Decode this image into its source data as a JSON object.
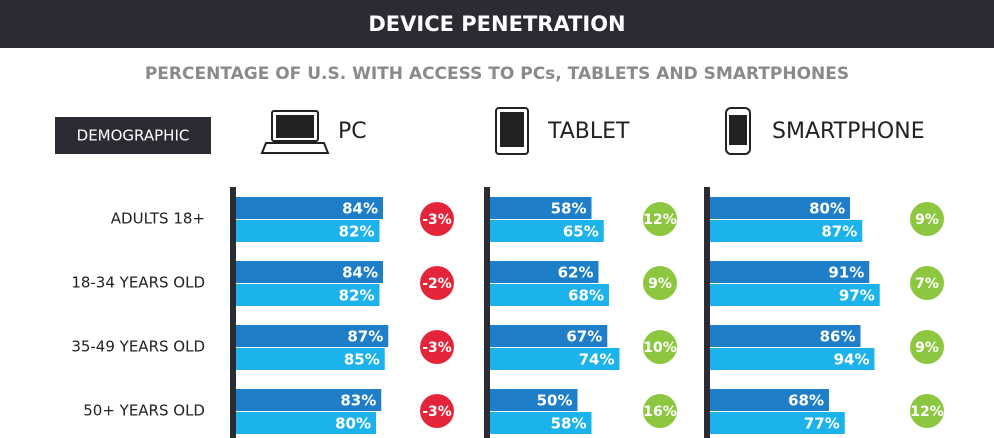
{
  "header": {
    "title": "DEVICE PENETRATION",
    "subtitle": "PERCENTAGE OF U.S. WITH ACCESS TO PCs, TABLETS AND SMARTPHONES"
  },
  "chart_data": {
    "type": "bar",
    "orientation": "horizontal",
    "row_label_header": "DEMOGRAPHIC",
    "categories": [
      "ADULTS 18+",
      "18-34 YEARS OLD",
      "35-49 YEARS OLD",
      "50+ YEARS OLD"
    ],
    "change_colors": {
      "negative": "#e3243b",
      "positive": "#8dc63f"
    },
    "panels": [
      {
        "title": "PC",
        "series": [
          {
            "color": "#1e7ec8",
            "values": [
              84,
              84,
              87,
              83
            ],
            "value_labels": [
              "84%",
              "84%",
              "87%",
              "83%"
            ]
          },
          {
            "color": "#1cb3ec",
            "values": [
              82,
              82,
              85,
              80
            ],
            "value_labels": [
              "82%",
              "82%",
              "85%",
              "80%"
            ]
          }
        ],
        "change": {
          "values": [
            -3,
            -2,
            -3,
            -3
          ],
          "value_labels": [
            "-3%",
            "-2%",
            "-3%",
            "-3%"
          ]
        }
      },
      {
        "title": "TABLET",
        "series": [
          {
            "color": "#1e7ec8",
            "values": [
              58,
              62,
              67,
              50
            ],
            "value_labels": [
              "58%",
              "62%",
              "67%",
              "50%"
            ]
          },
          {
            "color": "#1cb3ec",
            "values": [
              65,
              68,
              74,
              58
            ],
            "value_labels": [
              "65%",
              "68%",
              "74%",
              "58%"
            ]
          }
        ],
        "change": {
          "values": [
            12,
            9,
            10,
            16
          ],
          "value_labels": [
            "12%",
            "9%",
            "10%",
            "16%"
          ]
        }
      },
      {
        "title": "SMARTPHONE",
        "series": [
          {
            "color": "#1e7ec8",
            "values": [
              80,
              91,
              86,
              68
            ],
            "value_labels": [
              "80%",
              "91%",
              "86%",
              "68%"
            ]
          },
          {
            "color": "#1cb3ec",
            "values": [
              87,
              97,
              94,
              77
            ],
            "value_labels": [
              "87%",
              "97%",
              "94%",
              "77%"
            ]
          }
        ],
        "change": {
          "values": [
            9,
            7,
            9,
            12
          ],
          "value_labels": [
            "9%",
            "7%",
            "9%",
            "12%"
          ]
        }
      }
    ]
  }
}
